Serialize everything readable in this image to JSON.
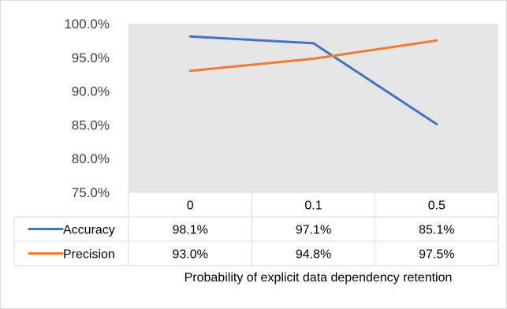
{
  "chart_data": {
    "type": "line",
    "categories": [
      "0",
      "0.1",
      "0.5"
    ],
    "series": [
      {
        "name": "Accuracy",
        "values": [
          98.1,
          97.1,
          85.1
        ],
        "labels": [
          "98.1%",
          "97.1%",
          "85.1%"
        ],
        "color": "#4472c4"
      },
      {
        "name": "Precision",
        "values": [
          93.0,
          94.8,
          97.5
        ],
        "labels": [
          "93.0%",
          "94.8%",
          "97.5%"
        ],
        "color": "#ed7d31"
      }
    ],
    "y_ticks": [
      "100.0%",
      "95.0%",
      "90.0%",
      "85.0%",
      "80.0%",
      "75.0%"
    ],
    "ylim": [
      75,
      100
    ],
    "xlabel": "Probability of explicit data dependency retention",
    "ylabel": "",
    "grid": false,
    "data_table": true,
    "plot_background": "#e7e6e6"
  }
}
